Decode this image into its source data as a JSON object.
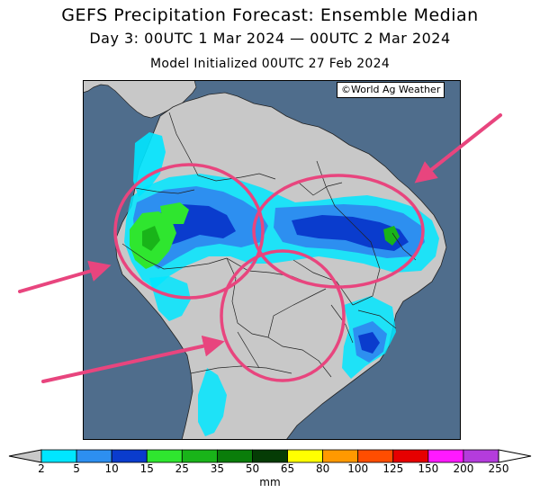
{
  "titles": {
    "line1": "GEFS Precipitation Forecast: Ensemble Median",
    "line2": "Day 3: 00UTC 1 Mar 2024 — 00UTC 2 Mar 2024",
    "line3": "Model Initialized 00UTC 27 Feb 2024"
  },
  "map": {
    "credit": "©World Ag Weather",
    "region": "South America",
    "ocean_color": "#4f6d8c",
    "land_color": "#c8c8c8",
    "annotations": {
      "circles": 3,
      "arrows": 3,
      "color": "#e8457e"
    }
  },
  "colorbar": {
    "units": "mm",
    "ticks": [
      "2",
      "5",
      "10",
      "15",
      "25",
      "35",
      "50",
      "65",
      "80",
      "100",
      "125",
      "150",
      "200",
      "250"
    ],
    "colors": [
      "#00e6ff",
      "#2d8ff0",
      "#0a3ccd",
      "#2fe62f",
      "#19b419",
      "#0a7d0a",
      "#053c05",
      "#ffff00",
      "#ff9900",
      "#ff4d00",
      "#e60000",
      "#ff19ff",
      "#b43cdc"
    ],
    "below_color": "#c8c8c8"
  }
}
